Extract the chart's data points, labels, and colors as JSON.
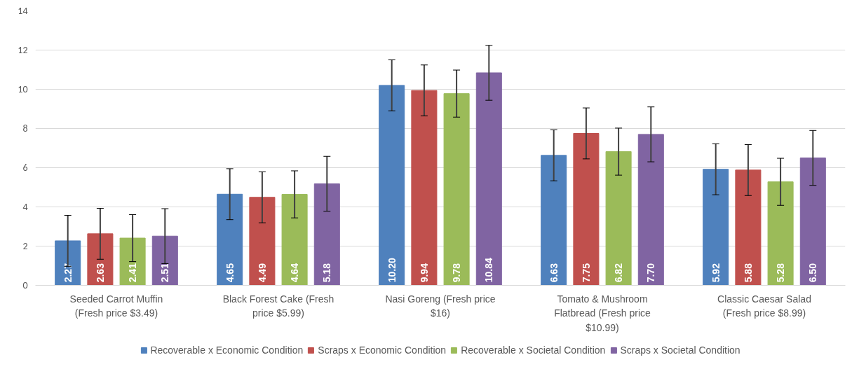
{
  "chart_data": {
    "type": "bar",
    "categories": [
      "Seeded Carrot Muffin (Fresh price $3.49)",
      "Black Forest Cake (Fresh price $5.99)",
      "Nasi Goreng (Fresh price $16)",
      "Tomato & Mushroom Flatbread (Fresh price $10.99)",
      "Classic Caesar Salad (Fresh price $8.99)"
    ],
    "series": [
      {
        "name": "Recoverable x Economic Condition",
        "color": "#4f81bd",
        "values": [
          2.27,
          4.65,
          10.2,
          6.63,
          5.92
        ],
        "errors": [
          1.3,
          1.3,
          1.3,
          1.3,
          1.3
        ],
        "value_labels": [
          "2.27",
          "4.65",
          "10.20",
          "6.63",
          "5.92"
        ]
      },
      {
        "name": "Scraps x Economic Condition",
        "color": "#c0504d",
        "values": [
          2.63,
          4.49,
          9.94,
          7.75,
          5.88
        ],
        "errors": [
          1.3,
          1.3,
          1.3,
          1.3,
          1.3
        ],
        "value_labels": [
          "2.63",
          "4.49",
          "9.94",
          "7.75",
          "5.88"
        ]
      },
      {
        "name": "Recoverable x Societal Condition",
        "color": "#9bbb59",
        "values": [
          2.41,
          4.64,
          9.78,
          6.82,
          5.28
        ],
        "errors": [
          1.2,
          1.2,
          1.2,
          1.2,
          1.2
        ],
        "value_labels": [
          "2.41",
          "4.64",
          "9.78",
          "6.82",
          "5.28"
        ]
      },
      {
        "name": "Scraps x Societal Condition",
        "color": "#8064a2",
        "values": [
          2.51,
          5.18,
          10.84,
          7.7,
          6.5
        ],
        "errors": [
          1.4,
          1.4,
          1.4,
          1.4,
          1.4
        ],
        "value_labels": [
          "2.51",
          "5.18",
          "10.84",
          "7.70",
          "6.50"
        ]
      }
    ],
    "ylim": [
      0,
      14
    ],
    "yticks": [
      0,
      2,
      4,
      6,
      8,
      10,
      12,
      14
    ],
    "grid": "y",
    "legend": "bottom"
  }
}
